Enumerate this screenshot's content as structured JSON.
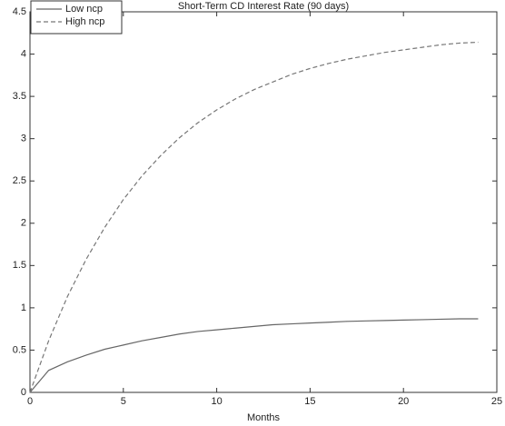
{
  "chart_data": {
    "type": "line",
    "title": "Short-Term CD Interest Rate (90 days)",
    "x_label": "Months",
    "x": [
      0,
      1,
      2,
      3,
      4,
      5,
      6,
      7,
      8,
      9,
      10,
      11,
      12,
      13,
      14,
      15,
      16,
      17,
      18,
      19,
      20,
      21,
      22,
      23,
      24
    ],
    "series": [
      {
        "name": "Low ncp",
        "color": "#666666",
        "style": "solid",
        "values": [
          0,
          0.26,
          0.36,
          0.44,
          0.51,
          0.56,
          0.61,
          0.65,
          0.69,
          0.72,
          0.74,
          0.76,
          0.78,
          0.8,
          0.81,
          0.82,
          0.83,
          0.84,
          0.845,
          0.85,
          0.855,
          0.86,
          0.865,
          0.87,
          0.87
        ]
      },
      {
        "name": "High ncp",
        "color": "#777777",
        "style": "dashed",
        "values": [
          0,
          0.61,
          1.13,
          1.57,
          1.95,
          2.28,
          2.56,
          2.8,
          3.01,
          3.19,
          3.34,
          3.47,
          3.58,
          3.67,
          3.76,
          3.83,
          3.89,
          3.94,
          3.98,
          4.02,
          4.05,
          4.08,
          4.11,
          4.13,
          4.14
        ]
      }
    ],
    "xlim": [
      0,
      25
    ],
    "xticks": [
      0,
      5,
      10,
      15,
      20,
      25
    ],
    "ylim": [
      0,
      4.5
    ],
    "yticks": [
      0,
      0.5,
      1,
      1.5,
      2,
      2.5,
      3,
      3.5,
      4,
      4.5
    ],
    "grid": false,
    "legend": "top-left"
  }
}
